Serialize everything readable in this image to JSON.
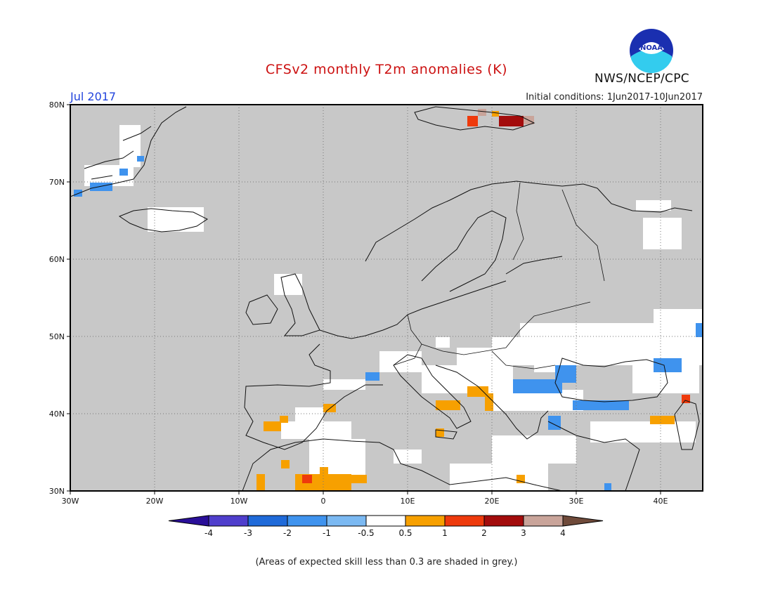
{
  "header": {
    "title": "CFSv2 monthly T2m anomalies (K)",
    "month": "Jul 2017",
    "initial_conditions": "Initial conditions: 1Jun2017-10Jun2017",
    "agency": "NWS/NCEP/CPC",
    "logo_text": "NOAA"
  },
  "map": {
    "background_color": "#c8c8c8",
    "lat_labels": [
      "80N",
      "70N",
      "60N",
      "50N",
      "40N",
      "30N"
    ],
    "lon_labels": [
      "30W",
      "20W",
      "10W",
      "0",
      "10E",
      "20E",
      "30E",
      "40E"
    ]
  },
  "colorbar": {
    "colors": [
      "#2a0f99",
      "#4f3ecc",
      "#1f6ad9",
      "#3f93ee",
      "#7bb9f2",
      "#ffffff",
      "#f7a000",
      "#ee3a0c",
      "#a30c0c",
      "#c9a49a",
      "#6f4a3a"
    ],
    "labels": [
      "-4",
      "-3",
      "-2",
      "-1",
      "-0.5",
      "0.5",
      "1",
      "2",
      "3",
      "4"
    ]
  },
  "footnote": "(Areas of expected skill less than 0.3 are shaded in grey.)"
}
